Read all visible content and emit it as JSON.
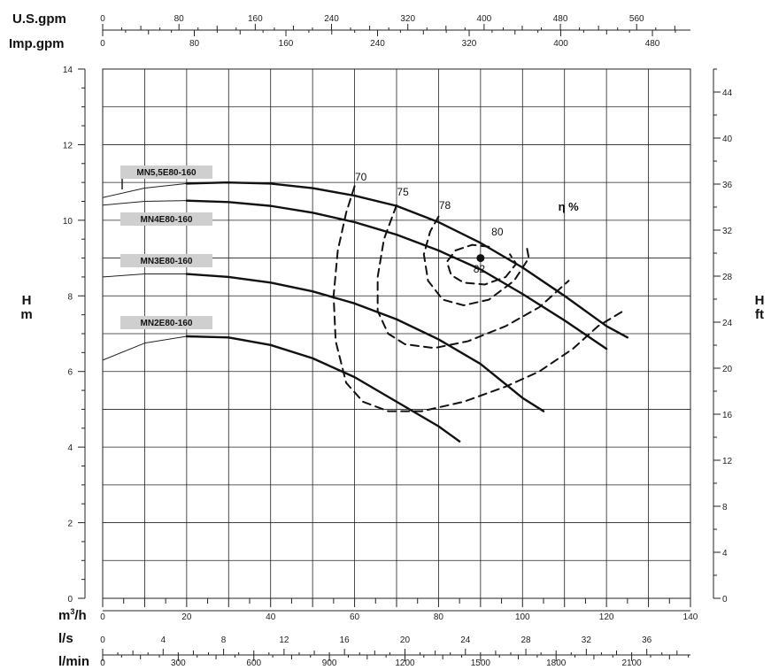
{
  "chart_data": {
    "type": "line",
    "title": "",
    "x_axis": {
      "label_parts": [
        "m",
        "3",
        "/h"
      ],
      "range": [
        0,
        140
      ],
      "ticks": [
        0,
        20,
        40,
        60,
        80,
        100,
        120,
        140
      ],
      "grid_step": 10
    },
    "y_axis_left": {
      "label_lines": [
        "H",
        "m"
      ],
      "range": [
        0,
        14
      ],
      "ticks": [
        0,
        2,
        4,
        6,
        8,
        10,
        12,
        14
      ],
      "grid_step": 1
    },
    "y_axis_right": {
      "label_lines": [
        "H",
        "ft"
      ],
      "ticks": [
        0,
        4,
        8,
        12,
        16,
        20,
        24,
        28,
        32,
        36,
        40,
        44
      ],
      "range_ft": [
        0,
        46
      ]
    },
    "top_axes": [
      {
        "label": "U.S.gpm",
        "ticks": [
          0,
          80,
          160,
          240,
          320,
          400,
          480,
          560
        ],
        "max": 616.4
      },
      {
        "label": "Imp.gpm",
        "ticks": [
          0,
          80,
          160,
          240,
          320,
          400,
          480
        ],
        "max": 513.2
      }
    ],
    "bottom_axes": [
      {
        "label": "l/s",
        "ticks": [
          0,
          4,
          8,
          12,
          16,
          20,
          24,
          28,
          32,
          36
        ],
        "max": 38.89
      },
      {
        "label": "l/min",
        "ticks": [
          0,
          300,
          600,
          900,
          1200,
          1500,
          1800,
          2100
        ],
        "max": 2333.3
      }
    ],
    "grid": true,
    "series": [
      {
        "name": "MN5,5E80-160",
        "points": [
          [
            0,
            10.6
          ],
          [
            10,
            10.85
          ],
          [
            20,
            10.97
          ],
          [
            30,
            11.0
          ],
          [
            40,
            10.97
          ],
          [
            50,
            10.85
          ],
          [
            60,
            10.65
          ],
          [
            70,
            10.38
          ],
          [
            80,
            9.95
          ],
          [
            90,
            9.4
          ],
          [
            100,
            8.75
          ],
          [
            110,
            8.0
          ],
          [
            120,
            7.2
          ],
          [
            125,
            6.9
          ]
        ]
      },
      {
        "name": "MN4E80-160",
        "points": [
          [
            0,
            10.4
          ],
          [
            10,
            10.5
          ],
          [
            20,
            10.52
          ],
          [
            30,
            10.48
          ],
          [
            40,
            10.38
          ],
          [
            50,
            10.2
          ],
          [
            60,
            9.95
          ],
          [
            70,
            9.62
          ],
          [
            80,
            9.2
          ],
          [
            90,
            8.7
          ],
          [
            100,
            8.05
          ],
          [
            110,
            7.35
          ],
          [
            120,
            6.6
          ]
        ]
      },
      {
        "name": "MN3E80-160",
        "points": [
          [
            0,
            8.5
          ],
          [
            10,
            8.58
          ],
          [
            20,
            8.58
          ],
          [
            30,
            8.5
          ],
          [
            40,
            8.35
          ],
          [
            50,
            8.12
          ],
          [
            60,
            7.8
          ],
          [
            70,
            7.38
          ],
          [
            80,
            6.85
          ],
          [
            90,
            6.2
          ],
          [
            100,
            5.3
          ],
          [
            105,
            4.95
          ]
        ]
      },
      {
        "name": "MN2E80-160",
        "points": [
          [
            0,
            6.3
          ],
          [
            10,
            6.75
          ],
          [
            20,
            6.93
          ],
          [
            30,
            6.9
          ],
          [
            40,
            6.7
          ],
          [
            50,
            6.35
          ],
          [
            60,
            5.85
          ],
          [
            70,
            5.2
          ],
          [
            80,
            4.55
          ],
          [
            85,
            4.15
          ]
        ]
      }
    ],
    "efficiency": {
      "title": "η %",
      "labels": [
        "70",
        "75",
        "78",
        "80",
        "82"
      ],
      "best_efficiency_point": [
        90,
        9.0
      ]
    }
  }
}
